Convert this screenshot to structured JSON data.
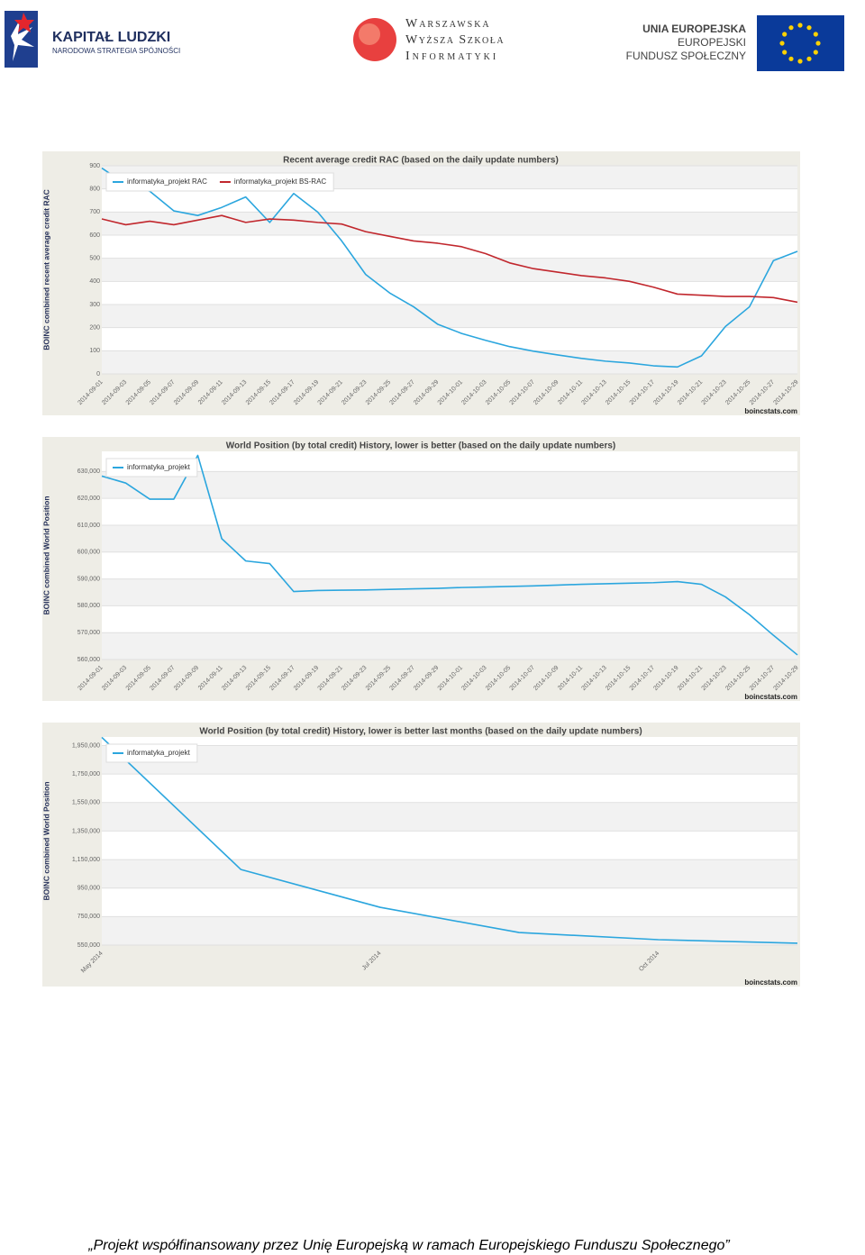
{
  "header": {
    "left_logo": {
      "title": "KAPITAŁ LUDZKI",
      "subtitle": "NARODOWA STRATEGIA SPÓJNOŚCI"
    },
    "center_logo": {
      "lines": [
        "Warszawska",
        "Wyższa Szkoła",
        "Informatyki"
      ]
    },
    "right_logo": {
      "lines": [
        "UNIA EUROPEJSKA",
        "EUROPEJSKI",
        "FUNDUSZ SPOŁECZNY"
      ]
    }
  },
  "chart_data": [
    {
      "type": "line",
      "title": "Recent average credit RAC  (based on the daily update numbers)",
      "y_label": "BOINC combined recent average credit RAC",
      "source": "boincstats.com",
      "categories": [
        "2014-09-01",
        "2014-09-03",
        "2014-09-05",
        "2014-09-07",
        "2014-09-09",
        "2014-09-11",
        "2014-09-13",
        "2014-09-15",
        "2014-09-17",
        "2014-09-19",
        "2014-09-21",
        "2014-09-23",
        "2014-09-25",
        "2014-09-27",
        "2014-09-29",
        "2014-10-01",
        "2014-10-03",
        "2014-10-05",
        "2014-10-07",
        "2014-10-09",
        "2014-10-11",
        "2014-10-13",
        "2014-10-15",
        "2014-10-17",
        "2014-10-19",
        "2014-10-21",
        "2014-10-23",
        "2014-10-25",
        "2014-10-27",
        "2014-10-29"
      ],
      "series": [
        {
          "name": "informatyka_projekt RAC",
          "color": "#2ba6de",
          "values": [
            890,
            820,
            790,
            705,
            685,
            720,
            765,
            655,
            780,
            700,
            575,
            430,
            350,
            290,
            215,
            175,
            145,
            118,
            98,
            82,
            67,
            55,
            47,
            35,
            30,
            78,
            205,
            290,
            490,
            530
          ]
        },
        {
          "name": "informatyka_projekt BS-RAC",
          "color": "#c1272d",
          "values": [
            670,
            645,
            660,
            645,
            665,
            685,
            655,
            670,
            665,
            655,
            648,
            615,
            595,
            575,
            565,
            550,
            520,
            480,
            455,
            440,
            425,
            415,
            400,
            375,
            345,
            340,
            335,
            335,
            330,
            310
          ]
        }
      ],
      "ylim": [
        0,
        900
      ],
      "yticks": [
        0,
        100,
        200,
        300,
        400,
        500,
        600,
        700,
        800,
        900
      ],
      "grid": true,
      "legend": "upper left"
    },
    {
      "type": "line",
      "title": "World Position (by total credit) History, lower is better  (based on the daily update numbers)",
      "y_label": "BOINC combined World Position",
      "source": "boincstats.com",
      "categories": [
        "2014-09-01",
        "2014-09-03",
        "2014-09-05",
        "2014-09-07",
        "2014-09-09",
        "2014-09-11",
        "2014-09-13",
        "2014-09-15",
        "2014-09-17",
        "2014-09-19",
        "2014-09-21",
        "2014-09-23",
        "2014-09-25",
        "2014-09-27",
        "2014-09-29",
        "2014-10-01",
        "2014-10-03",
        "2014-10-05",
        "2014-10-07",
        "2014-10-09",
        "2014-10-11",
        "2014-10-13",
        "2014-10-15",
        "2014-10-17",
        "2014-10-19",
        "2014-10-21",
        "2014-10-23",
        "2014-10-25",
        "2014-10-27",
        "2014-10-29"
      ],
      "series": [
        {
          "name": "informatyka_projekt",
          "color": "#2ba6de",
          "values": [
            628300,
            625700,
            619700,
            619700,
            636000,
            605000,
            596700,
            595700,
            585300,
            585700,
            585800,
            585900,
            586100,
            586300,
            586500,
            586800,
            587000,
            587200,
            587400,
            587700,
            588000,
            588200,
            588400,
            588600,
            589000,
            588000,
            583300,
            576700,
            569000,
            561700
          ]
        }
      ],
      "ylim": [
        560000,
        637500
      ],
      "yticks": [
        {
          "value": 560000,
          "label": "560,000"
        },
        {
          "value": 570000,
          "label": "570,000"
        },
        {
          "value": 580000,
          "label": "580,000"
        },
        {
          "value": 590000,
          "label": "590,000"
        },
        {
          "value": 600000,
          "label": "600,000"
        },
        {
          "value": 610000,
          "label": "610,000"
        },
        {
          "value": 620000,
          "label": "620,000"
        },
        {
          "value": 630000,
          "label": "630,000"
        }
      ],
      "grid": true,
      "legend": "upper left"
    },
    {
      "type": "line",
      "title": "World Position (by total credit) History, lower is better last months (based on the daily update numbers)",
      "y_label": "BOINC combined World Position",
      "source": "boincstats.com",
      "categories": [
        "May 2014",
        null,
        "Jul 2014",
        null,
        "Oct 2014",
        null
      ],
      "series": [
        {
          "name": "informatyka_projekt",
          "color": "#2ba6de",
          "values": [
            2007000,
            1080000,
            815000,
            638000,
            588000,
            563000
          ]
        }
      ],
      "ylim": [
        550000,
        2010000
      ],
      "yticks": [
        {
          "value": 550000,
          "label": "550,000"
        },
        {
          "value": 750000,
          "label": "750,000"
        },
        {
          "value": 950000,
          "label": "950,000"
        },
        {
          "value": 1150000,
          "label": "1,150,000"
        },
        {
          "value": 1350000,
          "label": "1,350,000"
        },
        {
          "value": 1550000,
          "label": "1,550,000"
        },
        {
          "value": 1750000,
          "label": "1,750,000"
        },
        {
          "value": 1950000,
          "label": "1,950,000"
        }
      ],
      "grid": true,
      "legend": "upper left"
    }
  ],
  "footer": "„Projekt współfinansowany przez Unię Europejską w ramach Europejskiego Funduszu Społecznego”"
}
